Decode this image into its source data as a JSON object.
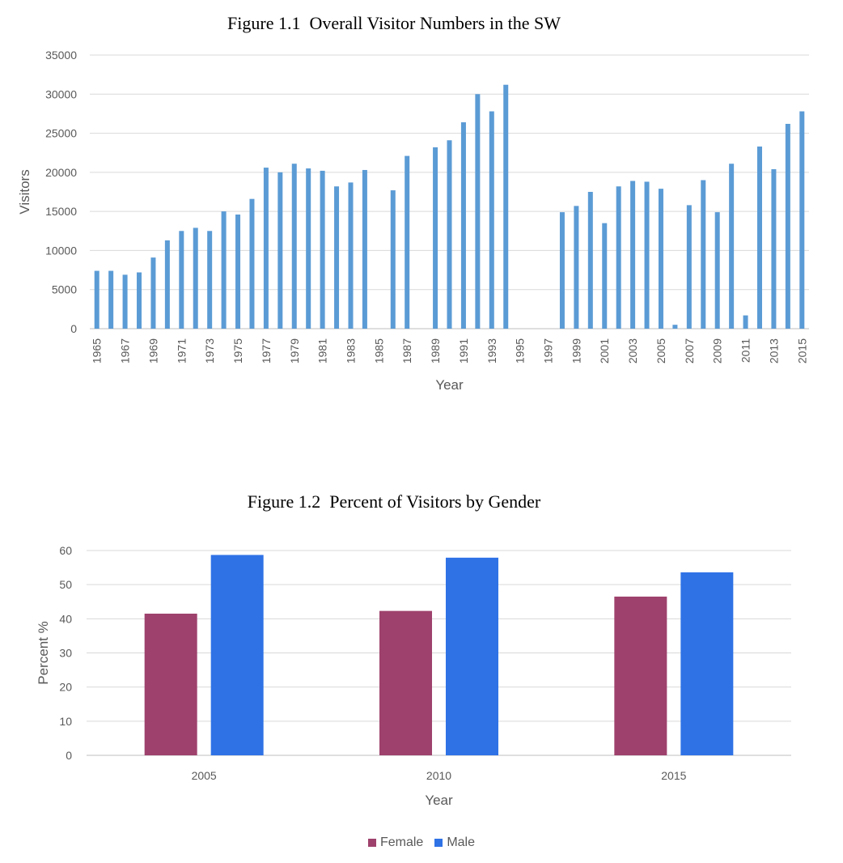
{
  "figures": [
    {
      "title": "Figure 1.1  Overall Visitor Numbers in the SW"
    },
    {
      "title": "Figure 1.2  Percent of Visitors by Gender"
    }
  ],
  "chart_data": [
    {
      "type": "bar",
      "title": "Figure 1.1  Overall Visitor Numbers in the SW",
      "xlabel": "Year",
      "ylabel": "Visitors",
      "ylim": [
        0,
        35000
      ],
      "yticks": [
        0,
        5000,
        10000,
        15000,
        20000,
        25000,
        30000,
        35000
      ],
      "grid": true,
      "color": "#5b9bd5",
      "categories": [
        "1965",
        "1966",
        "1967",
        "1968",
        "1969",
        "1970",
        "1971",
        "1972",
        "1973",
        "1974",
        "1975",
        "1976",
        "1977",
        "1978",
        "1979",
        "1980",
        "1981",
        "1982",
        "1983",
        "1984",
        "1985",
        "1986",
        "1987",
        "1988",
        "1989",
        "1990",
        "1991",
        "1992",
        "1993",
        "1994",
        "1995",
        "1996",
        "1997",
        "1998",
        "1999",
        "2000",
        "2001",
        "2002",
        "2003",
        "2004",
        "2005",
        "2006",
        "2007",
        "2008",
        "2009",
        "2010",
        "2011",
        "2012",
        "2013",
        "2014",
        "2015"
      ],
      "x_tick_labels": [
        "1965",
        "1967",
        "1969",
        "1971",
        "1973",
        "1975",
        "1977",
        "1979",
        "1981",
        "1983",
        "1985",
        "1987",
        "1989",
        "1991",
        "1993",
        "1995",
        "1997",
        "1999",
        "2001",
        "2003",
        "2005",
        "2007",
        "2009",
        "2011",
        "2013",
        "2015"
      ],
      "values": [
        7400,
        7400,
        6900,
        7200,
        9100,
        11300,
        12500,
        12900,
        12500,
        15000,
        14600,
        16600,
        20600,
        20000,
        21100,
        20500,
        20200,
        18200,
        18700,
        20300,
        null,
        17700,
        22100,
        null,
        23200,
        24100,
        26400,
        30000,
        27800,
        31200,
        null,
        null,
        null,
        14900,
        15700,
        17500,
        13500,
        18200,
        18900,
        18800,
        17900,
        500,
        15800,
        19000,
        14900,
        21100,
        1700,
        23300,
        20400,
        26200,
        27800
      ]
    },
    {
      "type": "bar",
      "title": "Figure 1.2  Percent of Visitors by Gender",
      "xlabel": "Year",
      "ylabel": "Percent %",
      "ylim": [
        0,
        60
      ],
      "yticks": [
        0,
        10,
        20,
        30,
        40,
        50,
        60
      ],
      "grid": true,
      "legend": "bottom",
      "categories": [
        "2005",
        "2010",
        "2015"
      ],
      "series": [
        {
          "name": "Female",
          "color": "#9e416c",
          "values": [
            41.5,
            42.3,
            46.5
          ]
        },
        {
          "name": "Male",
          "color": "#2f72e6",
          "values": [
            58.7,
            57.9,
            53.6
          ]
        }
      ]
    }
  ]
}
